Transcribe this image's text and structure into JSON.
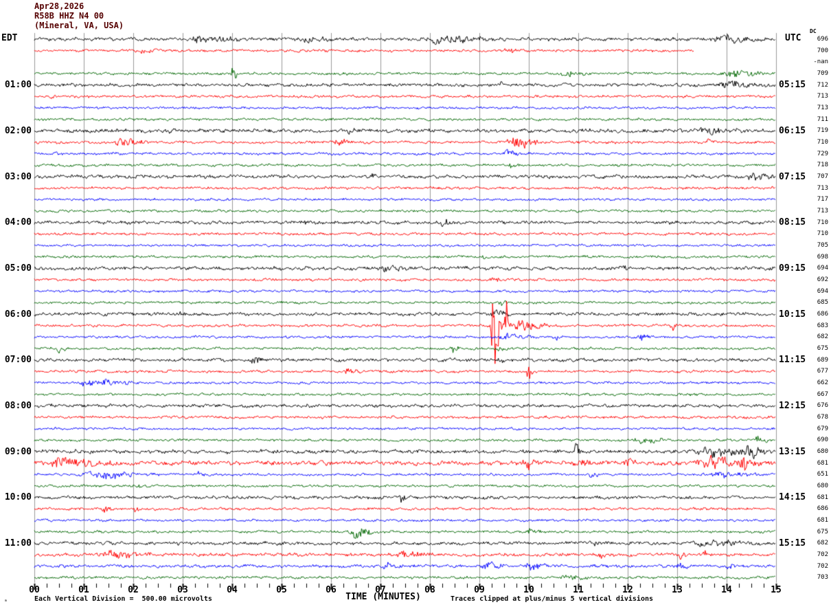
{
  "header": {
    "date": "Apr28,2026",
    "station": "R58B HHZ N4 00",
    "location": "(Mineral, VA, USA)"
  },
  "left_axis": {
    "label": "EDT",
    "hours": [
      "01:00",
      "02:00",
      "03:00",
      "04:00",
      "05:00",
      "06:00",
      "07:00",
      "08:00",
      "09:00",
      "10:00",
      "11:00"
    ]
  },
  "right_axis": {
    "label": "UTC",
    "dc_header": "DC",
    "hours": [
      "05:15",
      "06:15",
      "07:15",
      "08:15",
      "09:15",
      "10:15",
      "11:15",
      "12:15",
      "13:15",
      "14:15",
      "15:15"
    ]
  },
  "footer": {
    "mini_marker": "ₘ",
    "scale_note": "Each Vertical Division =  500.00 microvolts",
    "axis_label": "TIME (MINUTES)",
    "clip_note": "Traces clipped at plus/minus 5 vertical divisions"
  },
  "chart_data": {
    "type": "line",
    "subtype": "helicorder",
    "title": "R58B HHZ N4 00 (Mineral, VA, USA) Apr28,2026",
    "xlabel": "TIME (MINUTES)",
    "x_range": [
      0,
      15
    ],
    "x_tick_labels": [
      "00",
      "01",
      "02",
      "03",
      "04",
      "05",
      "06",
      "07",
      "08",
      "09",
      "10",
      "11",
      "12",
      "13",
      "14",
      "15"
    ],
    "minutes_per_row": 15,
    "rows_per_hour": 4,
    "clip_divisions": 5,
    "microvolts_per_division": 500.0,
    "grid_on": true,
    "colors": {
      "trace_cycle": [
        "#000000",
        "#ff0000",
        "#0000ff",
        "#006600"
      ],
      "grid": "#999999",
      "header_text": "#550000",
      "label_text": "#000000",
      "background": "#ffffff"
    },
    "rows": [
      {
        "dc": "696"
      },
      {
        "dc": "700",
        "end": 13.35
      },
      {
        "dc": "-nan",
        "missing": true
      },
      {
        "dc": "709"
      },
      {
        "dc": "712"
      },
      {
        "dc": "713"
      },
      {
        "dc": "713"
      },
      {
        "dc": "711"
      },
      {
        "dc": "719"
      },
      {
        "dc": "710"
      },
      {
        "dc": "729"
      },
      {
        "dc": "718"
      },
      {
        "dc": "707"
      },
      {
        "dc": "713"
      },
      {
        "dc": "717"
      },
      {
        "dc": "713"
      },
      {
        "dc": "710"
      },
      {
        "dc": "710"
      },
      {
        "dc": "705"
      },
      {
        "dc": "698"
      },
      {
        "dc": "694"
      },
      {
        "dc": "692"
      },
      {
        "dc": "694"
      },
      {
        "dc": "685"
      },
      {
        "dc": "686"
      },
      {
        "dc": "683"
      },
      {
        "dc": "682"
      },
      {
        "dc": "675"
      },
      {
        "dc": "689"
      },
      {
        "dc": "677"
      },
      {
        "dc": "662"
      },
      {
        "dc": "667"
      },
      {
        "dc": "676"
      },
      {
        "dc": "678"
      },
      {
        "dc": "679"
      },
      {
        "dc": "690"
      },
      {
        "dc": "680"
      },
      {
        "dc": "681"
      },
      {
        "dc": "651"
      },
      {
        "dc": "680"
      },
      {
        "dc": "681"
      },
      {
        "dc": "686"
      },
      {
        "dc": "681"
      },
      {
        "dc": "675"
      },
      {
        "dc": "682"
      },
      {
        "dc": "702"
      },
      {
        "dc": "702"
      },
      {
        "dc": "703"
      }
    ],
    "base_amp_default": {
      "black": 2.6,
      "red": 2.1,
      "blue": 1.9,
      "green": 2.0
    },
    "base_amp_overrides": {
      "8": 3.0,
      "12": 2.8,
      "20": 2.8,
      "36": 3.0,
      "37": 3.4,
      "45": 2.6,
      "46": 2.4
    },
    "events": [
      [
        0,
        3.1,
        4.4,
        5
      ],
      [
        0,
        5.3,
        6.2,
        3.5
      ],
      [
        0,
        7.8,
        9.4,
        6
      ],
      [
        0,
        13.6,
        15,
        4
      ],
      [
        1,
        2.0,
        2.6,
        3.5
      ],
      [
        1,
        9.5,
        10.0,
        3.5
      ],
      [
        3,
        3.98,
        4.14,
        13
      ],
      [
        3,
        10.6,
        11.4,
        4
      ],
      [
        3,
        13.8,
        15,
        5
      ],
      [
        4,
        9.4,
        9.6,
        3.5
      ],
      [
        4,
        13.8,
        15,
        4.5
      ],
      [
        5,
        0.3,
        0.5,
        3.5
      ],
      [
        8,
        2.7,
        3.0,
        4
      ],
      [
        8,
        6.3,
        6.5,
        3.5
      ],
      [
        8,
        13.4,
        14.3,
        5
      ],
      [
        9,
        1.6,
        2.4,
        7
      ],
      [
        9,
        6.0,
        6.5,
        4.5
      ],
      [
        9,
        9.5,
        10.5,
        8
      ],
      [
        9,
        13.55,
        13.75,
        5
      ],
      [
        10,
        0.4,
        0.6,
        3.5
      ],
      [
        10,
        9.5,
        9.9,
        5.5
      ],
      [
        11,
        9.55,
        9.85,
        3.5
      ],
      [
        12,
        6.8,
        7.0,
        3.5
      ],
      [
        12,
        14.4,
        15,
        5
      ],
      [
        16,
        5.4,
        5.6,
        3.5
      ],
      [
        16,
        8.2,
        8.5,
        4.5
      ],
      [
        19,
        9.0,
        9.2,
        3.5
      ],
      [
        20,
        7.0,
        7.6,
        4.5
      ],
      [
        20,
        11.9,
        12.1,
        3.5
      ],
      [
        21,
        9.2,
        9.5,
        4.5
      ],
      [
        23,
        9.35,
        9.65,
        4.5
      ],
      [
        24,
        2.9,
        3.1,
        3.5
      ],
      [
        24,
        9.2,
        9.7,
        4.5
      ],
      [
        25,
        9.22,
        9.5,
        75
      ],
      [
        25,
        9.5,
        9.65,
        38
      ],
      [
        25,
        9.65,
        10.5,
        9
      ],
      [
        25,
        12.85,
        13.05,
        7
      ],
      [
        26,
        9.3,
        10.3,
        4.5
      ],
      [
        26,
        10.5,
        10.65,
        5
      ],
      [
        26,
        12.2,
        12.55,
        5.5
      ],
      [
        27,
        0.45,
        0.75,
        6
      ],
      [
        27,
        8.4,
        8.7,
        5
      ],
      [
        27,
        9.35,
        9.6,
        4.5
      ],
      [
        28,
        4.35,
        4.65,
        6
      ],
      [
        28,
        9.35,
        9.55,
        5
      ],
      [
        29,
        6.2,
        6.7,
        4.5
      ],
      [
        29,
        9.95,
        10.1,
        24
      ],
      [
        30,
        0.8,
        2.4,
        5
      ],
      [
        32,
        5.45,
        5.62,
        5
      ],
      [
        35,
        12.1,
        12.9,
        5
      ],
      [
        35,
        14.5,
        15,
        4.5
      ],
      [
        36,
        10.9,
        11.1,
        10
      ],
      [
        36,
        13.3,
        15,
        6
      ],
      [
        36,
        14.3,
        14.95,
        10
      ],
      [
        37,
        0.1,
        1.8,
        7
      ],
      [
        37,
        9.8,
        10.45,
        7
      ],
      [
        37,
        11.0,
        11.35,
        5
      ],
      [
        37,
        11.9,
        12.4,
        6
      ],
      [
        37,
        13.3,
        15,
        8
      ],
      [
        37,
        14.25,
        14.5,
        16
      ],
      [
        38,
        0.9,
        2.6,
        6
      ],
      [
        38,
        3.3,
        3.5,
        6
      ],
      [
        38,
        11.2,
        11.5,
        4.5
      ],
      [
        38,
        13.4,
        15,
        3.5
      ],
      [
        39,
        2.05,
        2.25,
        4
      ],
      [
        40,
        7.35,
        7.65,
        6
      ],
      [
        41,
        1.35,
        1.65,
        5
      ],
      [
        41,
        2.0,
        2.2,
        4
      ],
      [
        43,
        6.3,
        7.1,
        7
      ],
      [
        43,
        9.9,
        10.3,
        4
      ],
      [
        44,
        11.2,
        11.5,
        3.5
      ],
      [
        44,
        13.3,
        14.8,
        4
      ],
      [
        45,
        1.2,
        2.7,
        4.5
      ],
      [
        45,
        7.3,
        8.1,
        5.5
      ],
      [
        45,
        11.4,
        11.6,
        4.5
      ],
      [
        45,
        13.0,
        13.2,
        5.5
      ],
      [
        45,
        13.5,
        13.7,
        6.5
      ],
      [
        46,
        7.0,
        7.6,
        3.5
      ],
      [
        46,
        9.0,
        9.6,
        6.5
      ],
      [
        46,
        9.9,
        10.5,
        5.5
      ],
      [
        46,
        12.9,
        13.4,
        4.5
      ],
      [
        46,
        14.0,
        14.2,
        4.5
      ],
      [
        47,
        10.6,
        11.3,
        3
      ]
    ]
  }
}
